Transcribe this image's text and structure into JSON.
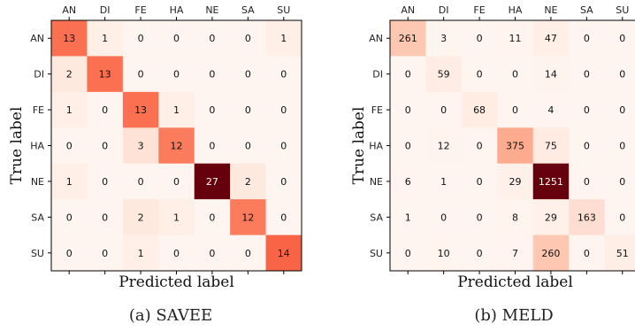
{
  "chart_data": [
    {
      "type": "heatmap",
      "caption": "(a) SAVEE",
      "xlabel": "Predicted label",
      "ylabel": "True label",
      "x_categories": [
        "AN",
        "DI",
        "FE",
        "HA",
        "NE",
        "SA",
        "SU"
      ],
      "y_categories": [
        "AN",
        "DI",
        "FE",
        "HA",
        "NE",
        "SA",
        "SU"
      ],
      "matrix": [
        [
          13,
          1,
          0,
          0,
          0,
          0,
          1
        ],
        [
          2,
          13,
          0,
          0,
          0,
          0,
          0
        ],
        [
          1,
          0,
          13,
          1,
          0,
          0,
          0
        ],
        [
          0,
          0,
          3,
          12,
          0,
          0,
          0
        ],
        [
          1,
          0,
          0,
          0,
          27,
          2,
          0
        ],
        [
          0,
          0,
          2,
          1,
          0,
          12,
          0
        ],
        [
          0,
          0,
          1,
          0,
          0,
          0,
          14
        ]
      ],
      "colormap": "Reds"
    },
    {
      "type": "heatmap",
      "caption": "(b) MELD",
      "xlabel": "Predicted label",
      "ylabel": "True label",
      "x_categories": [
        "AN",
        "DI",
        "FE",
        "HA",
        "NE",
        "SA",
        "SU"
      ],
      "y_categories": [
        "AN",
        "DI",
        "FE",
        "HA",
        "NE",
        "SA",
        "SU"
      ],
      "matrix": [
        [
          261,
          3,
          0,
          11,
          47,
          0,
          0
        ],
        [
          0,
          59,
          0,
          0,
          14,
          0,
          0
        ],
        [
          0,
          0,
          68,
          0,
          4,
          0,
          0
        ],
        [
          0,
          12,
          0,
          375,
          75,
          0,
          0
        ],
        [
          6,
          1,
          0,
          29,
          1251,
          0,
          0
        ],
        [
          1,
          0,
          0,
          8,
          29,
          163,
          0
        ],
        [
          0,
          10,
          0,
          7,
          260,
          0,
          51
        ]
      ],
      "colormap": "Reds"
    }
  ]
}
